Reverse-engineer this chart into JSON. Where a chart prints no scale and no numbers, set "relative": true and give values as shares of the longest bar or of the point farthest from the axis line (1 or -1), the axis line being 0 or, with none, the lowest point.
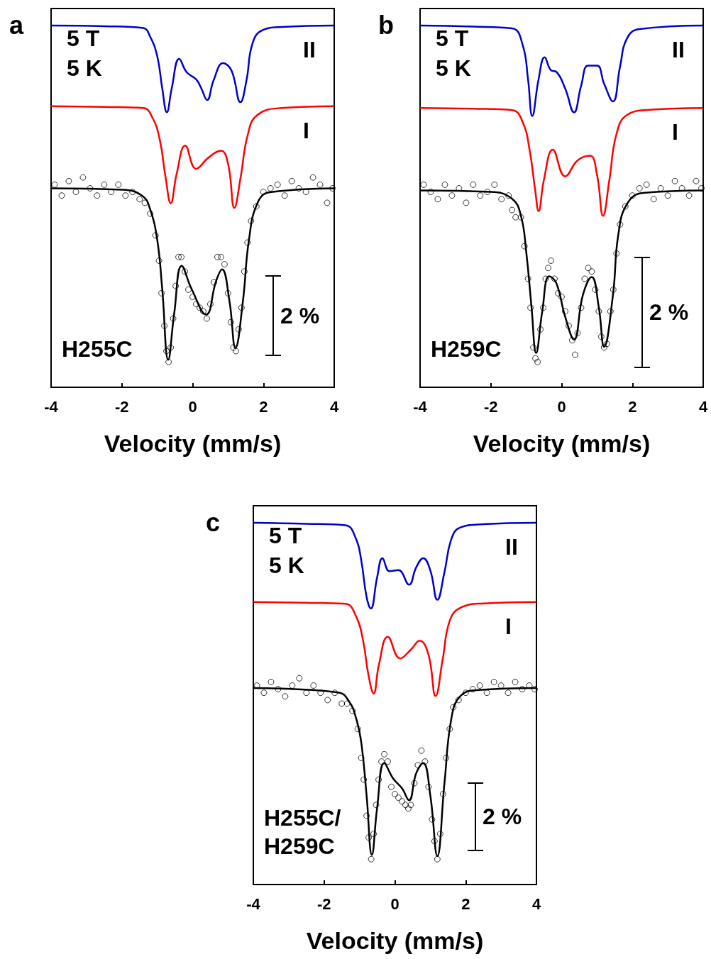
{
  "chart_data": [
    {
      "type": "line",
      "title": "a",
      "xlabel": "Velocity (mm/s)",
      "relative": true,
      "xlim": [
        -4,
        4
      ],
      "xticks": [
        -4,
        -2,
        0,
        2,
        4
      ],
      "annotations": [
        "5 T",
        "5 K",
        "H255C",
        "2 %"
      ],
      "series": [
        {
          "name": "II",
          "type": "line",
          "color": "#0000cc",
          "marker": "none",
          "line_style": "solid",
          "x": [
            -4,
            -2.5,
            -1.4,
            -1.2,
            -1.0,
            -0.86,
            -0.73,
            -0.59,
            -0.38,
            -0.17,
            0.1,
            0.24,
            0.41,
            0.59,
            0.86,
            1.1,
            1.35,
            1.52,
            1.69,
            1.97,
            2.52,
            4
          ],
          "values": [
            1.0,
            0.998,
            0.993,
            0.969,
            0.915,
            0.827,
            0.76,
            0.827,
            0.908,
            0.871,
            0.851,
            0.827,
            0.794,
            0.848,
            0.896,
            0.875,
            0.788,
            0.848,
            0.95,
            0.987,
            0.996,
            1.0
          ]
        },
        {
          "name": "I",
          "type": "line",
          "color": "#ff0000",
          "marker": "none",
          "line_style": "solid",
          "x": [
            -4,
            -2.5,
            -1.4,
            -1.14,
            -0.93,
            -0.76,
            -0.62,
            -0.45,
            -0.21,
            0.1,
            0.45,
            0.8,
            1.0,
            1.18,
            1.35,
            1.56,
            1.83,
            2.52,
            4
          ],
          "values": [
            0.777,
            0.775,
            0.772,
            0.746,
            0.685,
            0.577,
            0.509,
            0.591,
            0.668,
            0.604,
            0.635,
            0.654,
            0.618,
            0.496,
            0.577,
            0.699,
            0.753,
            0.772,
            0.777
          ]
        },
        {
          "type": "scatter",
          "color": "#000000",
          "marker": "circle",
          "x": [
            -3.9,
            -3.7,
            -3.5,
            -3.3,
            -3.1,
            -2.9,
            -2.7,
            -2.5,
            -2.3,
            -2.1,
            -1.9,
            -1.7,
            -1.5,
            -1.35,
            -1.2,
            -1.05,
            -0.95,
            -0.88,
            -0.8,
            -0.74,
            -0.68,
            -0.62,
            -0.55,
            -0.48,
            -0.4,
            -0.32,
            -0.22,
            -0.12,
            0.0,
            0.1,
            0.2,
            0.3,
            0.4,
            0.5,
            0.6,
            0.7,
            0.8,
            0.9,
            1.0,
            1.08,
            1.15,
            1.22,
            1.3,
            1.38,
            1.46,
            1.55,
            1.65,
            1.8,
            2.0,
            2.2,
            2.4,
            2.6,
            2.8,
            3.0,
            3.2,
            3.4,
            3.6,
            3.8,
            3.95
          ],
          "values": [
            0.56,
            0.53,
            0.57,
            0.54,
            0.58,
            0.55,
            0.53,
            0.56,
            0.54,
            0.56,
            0.53,
            0.54,
            0.52,
            0.51,
            0.48,
            0.42,
            0.35,
            0.26,
            0.17,
            0.1,
            0.07,
            0.11,
            0.19,
            0.28,
            0.36,
            0.36,
            0.32,
            0.27,
            0.25,
            0.23,
            0.22,
            0.21,
            0.19,
            0.23,
            0.29,
            0.36,
            0.36,
            0.34,
            0.26,
            0.18,
            0.11,
            0.1,
            0.16,
            0.22,
            0.32,
            0.4,
            0.46,
            0.5,
            0.54,
            0.55,
            0.56,
            0.53,
            0.57,
            0.55,
            0.54,
            0.58,
            0.56,
            0.51,
            0.55
          ]
        },
        {
          "type": "line",
          "color": "#000000",
          "marker": "none",
          "line_style": "solid",
          "x": [
            -4,
            -1.97,
            -1.42,
            -1.21,
            -1.0,
            -0.86,
            -0.69,
            -0.52,
            -0.31,
            -0.03,
            0.38,
            0.66,
            0.83,
            1.04,
            1.21,
            1.42,
            1.59,
            1.83,
            2.18,
            4
          ],
          "values": [
            0.55,
            0.546,
            0.529,
            0.495,
            0.407,
            0.272,
            0.076,
            0.205,
            0.336,
            0.272,
            0.201,
            0.293,
            0.326,
            0.238,
            0.109,
            0.238,
            0.407,
            0.509,
            0.539,
            0.55
          ]
        }
      ]
    },
    {
      "type": "line",
      "title": "b",
      "xlabel": "Velocity (mm/s)",
      "relative": true,
      "xlim": [
        -4,
        4
      ],
      "xticks": [
        -4,
        -2,
        0,
        2,
        4
      ],
      "annotations": [
        "5 T",
        "5 K",
        "H259C",
        "2 %"
      ],
      "series": [
        {
          "name": "II",
          "type": "line",
          "color": "#0000cc",
          "marker": "none",
          "line_style": "solid",
          "x": [
            -4,
            -2.5,
            -1.4,
            -1.1,
            -0.95,
            -0.83,
            -0.65,
            -0.48,
            -0.3,
            -0.15,
            0.1,
            0.35,
            0.55,
            0.75,
            1.0,
            1.2,
            1.45,
            1.65,
            1.85,
            2.2,
            4
          ],
          "values": [
            1.0,
            0.997,
            0.992,
            0.946,
            0.852,
            0.75,
            0.852,
            0.912,
            0.876,
            0.872,
            0.826,
            0.76,
            0.833,
            0.889,
            0.889,
            0.839,
            0.79,
            0.886,
            0.965,
            0.99,
            1.0
          ]
        },
        {
          "name": "I",
          "type": "line",
          "color": "#ff0000",
          "marker": "none",
          "line_style": "solid",
          "x": [
            -4,
            -2.5,
            -1.4,
            -1.1,
            -0.9,
            -0.75,
            -0.65,
            -0.5,
            -0.25,
            0.1,
            0.45,
            0.8,
            1.0,
            1.17,
            1.35,
            1.55,
            1.85,
            2.5,
            4
          ],
          "values": [
            0.772,
            0.77,
            0.766,
            0.733,
            0.653,
            0.547,
            0.487,
            0.574,
            0.657,
            0.583,
            0.627,
            0.64,
            0.587,
            0.474,
            0.574,
            0.7,
            0.753,
            0.767,
            0.772
          ]
        },
        {
          "type": "scatter",
          "color": "#000000",
          "marker": "circle",
          "x": [
            -3.9,
            -3.7,
            -3.5,
            -3.3,
            -3.1,
            -2.9,
            -2.7,
            -2.5,
            -2.3,
            -2.1,
            -1.9,
            -1.7,
            -1.5,
            -1.4,
            -1.3,
            -1.15,
            -1.05,
            -0.95,
            -0.88,
            -0.8,
            -0.74,
            -0.68,
            -0.6,
            -0.52,
            -0.45,
            -0.38,
            -0.3,
            -0.2,
            -0.1,
            0.0,
            0.1,
            0.2,
            0.3,
            0.38,
            0.45,
            0.55,
            0.65,
            0.75,
            0.85,
            0.95,
            1.05,
            1.12,
            1.2,
            1.28,
            1.38,
            1.46,
            1.55,
            1.65,
            1.8,
            2.0,
            2.2,
            2.4,
            2.6,
            2.8,
            3.0,
            3.2,
            3.4,
            3.6,
            3.8,
            3.95
          ],
          "values": [
            0.56,
            0.54,
            0.52,
            0.56,
            0.53,
            0.55,
            0.51,
            0.56,
            0.53,
            0.54,
            0.56,
            0.52,
            0.53,
            0.49,
            0.47,
            0.47,
            0.39,
            0.3,
            0.22,
            0.11,
            0.08,
            0.07,
            0.16,
            0.22,
            0.3,
            0.33,
            0.35,
            0.3,
            0.26,
            0.25,
            0.21,
            0.17,
            0.13,
            0.09,
            0.15,
            0.22,
            0.3,
            0.33,
            0.32,
            0.27,
            0.21,
            0.14,
            0.11,
            0.12,
            0.21,
            0.27,
            0.37,
            0.45,
            0.5,
            0.53,
            0.55,
            0.56,
            0.52,
            0.55,
            0.53,
            0.57,
            0.55,
            0.53,
            0.57,
            0.55
          ]
        },
        {
          "type": "line",
          "color": "#000000",
          "marker": "none",
          "line_style": "solid",
          "x": [
            -4,
            -2.0,
            -1.4,
            -1.15,
            -1.0,
            -0.85,
            -0.72,
            -0.55,
            -0.35,
            -0.15,
            0.1,
            0.35,
            0.6,
            0.85,
            1.05,
            1.2,
            1.45,
            1.6,
            1.85,
            2.3,
            4
          ],
          "values": [
            0.544,
            0.54,
            0.521,
            0.474,
            0.374,
            0.221,
            0.095,
            0.208,
            0.307,
            0.288,
            0.195,
            0.132,
            0.255,
            0.305,
            0.221,
            0.112,
            0.255,
            0.421,
            0.507,
            0.537,
            0.544
          ]
        }
      ]
    },
    {
      "type": "line",
      "title": "c",
      "xlabel": "Velocity (mm/s)",
      "relative": true,
      "xlim": [
        -4,
        4
      ],
      "xticks": [
        -4,
        -2,
        0,
        2,
        4
      ],
      "annotations": [
        "5 T",
        "5 K",
        "H255C/\nH259C",
        "2 %"
      ],
      "series": [
        {
          "name": "II",
          "type": "line",
          "color": "#0000cc",
          "marker": "none",
          "line_style": "solid",
          "x": [
            -4,
            -2.5,
            -1.4,
            -1.1,
            -0.95,
            -0.8,
            -0.68,
            -0.5,
            -0.35,
            -0.15,
            0.1,
            0.4,
            0.6,
            0.8,
            1.0,
            1.2,
            1.4,
            1.6,
            1.85,
            2.5,
            4
          ],
          "values": [
            1.0,
            0.997,
            0.993,
            0.956,
            0.896,
            0.795,
            0.763,
            0.85,
            0.902,
            0.866,
            0.869,
            0.829,
            0.876,
            0.902,
            0.869,
            0.787,
            0.863,
            0.956,
            0.987,
            0.996,
            1.0
          ]
        },
        {
          "name": "I",
          "type": "line",
          "color": "#ff0000",
          "marker": "none",
          "line_style": "solid",
          "x": [
            -4,
            -2.5,
            -1.4,
            -1.1,
            -0.9,
            -0.75,
            -0.6,
            -0.45,
            -0.2,
            0.15,
            0.45,
            0.7,
            0.95,
            1.15,
            1.35,
            1.55,
            1.85,
            2.5,
            4
          ],
          "values": [
            0.781,
            0.779,
            0.776,
            0.742,
            0.675,
            0.581,
            0.528,
            0.608,
            0.685,
            0.625,
            0.649,
            0.674,
            0.635,
            0.521,
            0.622,
            0.729,
            0.765,
            0.777,
            0.781
          ]
        },
        {
          "type": "scatter",
          "color": "#000000",
          "marker": "circle",
          "x": [
            -3.9,
            -3.7,
            -3.5,
            -3.3,
            -3.1,
            -2.9,
            -2.7,
            -2.5,
            -2.3,
            -2.1,
            -1.9,
            -1.7,
            -1.5,
            -1.35,
            -1.2,
            -1.05,
            -0.95,
            -0.88,
            -0.8,
            -0.74,
            -0.67,
            -0.6,
            -0.53,
            -0.46,
            -0.38,
            -0.3,
            -0.2,
            -0.1,
            0.0,
            0.1,
            0.2,
            0.3,
            0.38,
            0.45,
            0.55,
            0.65,
            0.75,
            0.85,
            0.95,
            1.05,
            1.12,
            1.2,
            1.28,
            1.36,
            1.45,
            1.55,
            1.65,
            1.8,
            2.0,
            2.2,
            2.4,
            2.6,
            2.8,
            3.0,
            3.2,
            3.4,
            3.6,
            3.8,
            3.95
          ],
          "values": [
            0.55,
            0.53,
            0.56,
            0.54,
            0.52,
            0.55,
            0.57,
            0.53,
            0.55,
            0.53,
            0.51,
            0.53,
            0.5,
            0.5,
            0.48,
            0.43,
            0.35,
            0.29,
            0.19,
            0.13,
            0.07,
            0.14,
            0.22,
            0.29,
            0.34,
            0.36,
            0.34,
            0.27,
            0.25,
            0.24,
            0.23,
            0.22,
            0.21,
            0.22,
            0.28,
            0.33,
            0.37,
            0.34,
            0.27,
            0.18,
            0.12,
            0.07,
            0.14,
            0.25,
            0.35,
            0.43,
            0.49,
            0.51,
            0.53,
            0.54,
            0.55,
            0.53,
            0.56,
            0.55,
            0.53,
            0.56,
            0.54,
            0.55,
            0.54
          ]
        },
        {
          "type": "line",
          "color": "#000000",
          "marker": "none",
          "line_style": "solid",
          "x": [
            -4,
            -1.6,
            -1.3,
            -1.1,
            -0.95,
            -0.8,
            -0.65,
            -0.5,
            -0.3,
            -0.05,
            0.2,
            0.4,
            0.6,
            0.8,
            1.0,
            1.2,
            1.4,
            1.6,
            1.85,
            2.3,
            4
          ],
          "values": [
            0.543,
            0.531,
            0.507,
            0.461,
            0.393,
            0.247,
            0.082,
            0.213,
            0.336,
            0.293,
            0.266,
            0.233,
            0.307,
            0.336,
            0.247,
            0.079,
            0.279,
            0.461,
            0.521,
            0.537,
            0.543
          ]
        }
      ]
    }
  ]
}
